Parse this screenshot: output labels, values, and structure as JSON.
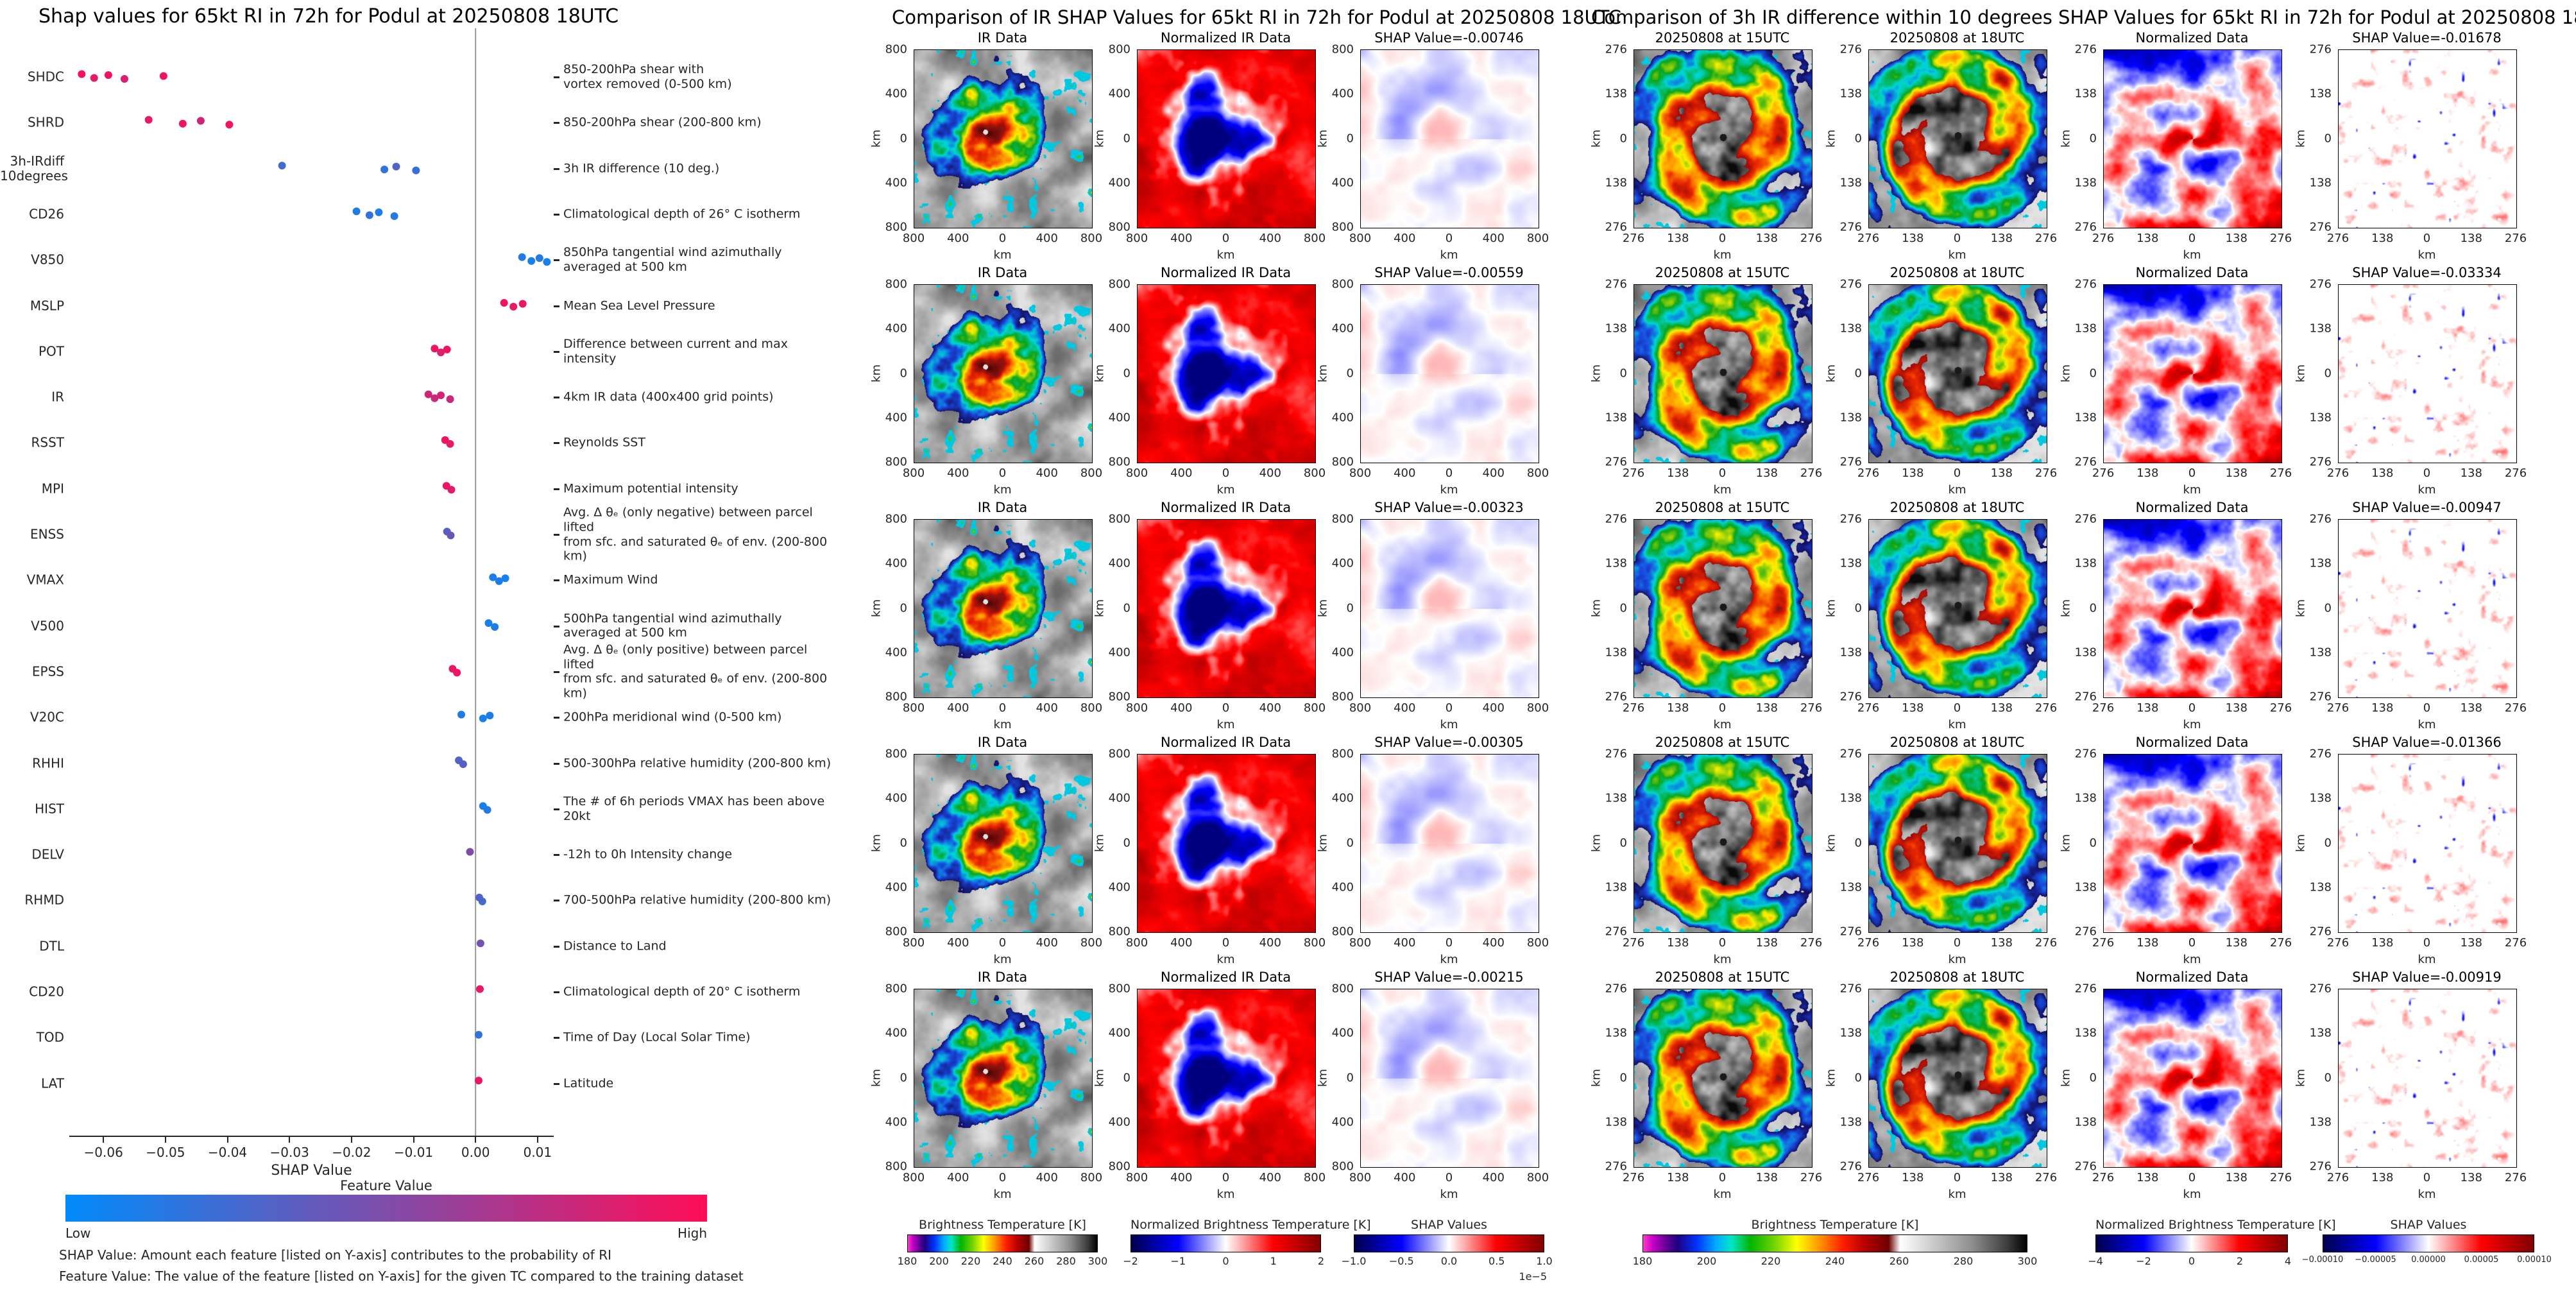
{
  "footnotes": {
    "line1": "SHAP Value: Amount each feature [listed on Y-axis] contributes to the probability of RI",
    "line2": "Feature Value: The value of the feature [listed on Y-axis] for the given TC compared to the training dataset"
  },
  "chart_data": [
    {
      "type": "scatter",
      "subtype": "shap-beeswarm",
      "title": "Shap values for 65kt RI in 72h for Podul at 20250808 18UTC",
      "xlabel": "SHAP Value",
      "xlim": [
        -0.0655,
        0.0126
      ],
      "x_ticks": [
        {
          "v": -0.06,
          "label": "−0.06"
        },
        {
          "v": -0.05,
          "label": "−0.05"
        },
        {
          "v": -0.04,
          "label": "−0.04"
        },
        {
          "v": -0.03,
          "label": "−0.03"
        },
        {
          "v": -0.02,
          "label": "−0.02"
        },
        {
          "v": -0.01,
          "label": "−0.01"
        },
        {
          "v": 0.0,
          "label": "0.00"
        },
        {
          "v": 0.01,
          "label": "0.01"
        }
      ],
      "colorbar": {
        "title": "Feature Value",
        "low": "Low",
        "high": "High"
      },
      "features": [
        {
          "name": "SHDC",
          "desc": "850-200hPa shear with\nvortex removed (0-500 km)",
          "points": [
            {
              "x": -0.0635,
              "c": 0.97
            },
            {
              "x": -0.0615,
              "c": 0.9
            },
            {
              "x": -0.0592,
              "c": 0.97
            },
            {
              "x": -0.0566,
              "c": 0.85
            },
            {
              "x": -0.0503,
              "c": 0.95
            }
          ]
        },
        {
          "name": "SHRD",
          "desc": "850-200hPa shear (200-800 km)",
          "points": [
            {
              "x": -0.0527,
              "c": 0.9
            },
            {
              "x": -0.0472,
              "c": 0.95
            },
            {
              "x": -0.0443,
              "c": 0.82
            },
            {
              "x": -0.0397,
              "c": 0.93
            }
          ]
        },
        {
          "name": "3h-IRdiff\n10degrees",
          "desc": "3h IR difference (10 deg.)",
          "points": [
            {
              "x": -0.0312,
              "c": 0.25
            },
            {
              "x": -0.0147,
              "c": 0.2
            },
            {
              "x": -0.0128,
              "c": 0.32
            },
            {
              "x": -0.0096,
              "c": 0.22
            }
          ]
        },
        {
          "name": "CD26",
          "desc": "Climatological depth of 26° C isotherm",
          "points": [
            {
              "x": -0.0192,
              "c": 0.12
            },
            {
              "x": -0.0171,
              "c": 0.2
            },
            {
              "x": -0.0156,
              "c": 0.1
            },
            {
              "x": -0.0131,
              "c": 0.15
            }
          ]
        },
        {
          "name": "V850",
          "desc": "850hPa tangential wind azimuthally\naveraged at 500 km",
          "points": [
            {
              "x": 0.0075,
              "c": 0.12
            },
            {
              "x": 0.009,
              "c": 0.08
            },
            {
              "x": 0.0103,
              "c": 0.15
            },
            {
              "x": 0.0115,
              "c": 0.1
            }
          ]
        },
        {
          "name": "MSLP",
          "desc": "Mean Sea Level Pressure",
          "points": [
            {
              "x": 0.0046,
              "c": 0.95
            },
            {
              "x": 0.0061,
              "c": 0.9
            },
            {
              "x": 0.0076,
              "c": 0.93
            }
          ]
        },
        {
          "name": "POT",
          "desc": "Difference between current and max intensity",
          "points": [
            {
              "x": -0.0066,
              "c": 0.93
            },
            {
              "x": -0.0056,
              "c": 0.88
            },
            {
              "x": -0.0046,
              "c": 0.95
            }
          ]
        },
        {
          "name": "IR",
          "desc": "4km IR data (400x400 grid points)",
          "points": [
            {
              "x": -0.0076,
              "c": 0.8
            },
            {
              "x": -0.0066,
              "c": 0.78
            },
            {
              "x": -0.0056,
              "c": 0.82
            },
            {
              "x": -0.0041,
              "c": 0.78
            }
          ]
        },
        {
          "name": "RSST",
          "desc": "Reynolds SST",
          "points": [
            {
              "x": -0.0049,
              "c": 0.95
            },
            {
              "x": -0.0041,
              "c": 0.9
            }
          ]
        },
        {
          "name": "MPI",
          "desc": "Maximum potential intensity",
          "points": [
            {
              "x": -0.0047,
              "c": 0.92
            },
            {
              "x": -0.0039,
              "c": 0.88
            }
          ]
        },
        {
          "name": "ENSS",
          "desc": "Avg. Δ θₑ (only negative) between parcel lifted\nfrom sfc. and saturated θₑ of env. (200-800 km)",
          "points": [
            {
              "x": -0.0046,
              "c": 0.35
            },
            {
              "x": -0.004,
              "c": 0.42
            }
          ]
        },
        {
          "name": "VMAX",
          "desc": "Maximum Wind",
          "points": [
            {
              "x": 0.0028,
              "c": 0.1
            },
            {
              "x": 0.0038,
              "c": 0.12
            },
            {
              "x": 0.0048,
              "c": 0.08
            }
          ]
        },
        {
          "name": "V500",
          "desc": "500hPa tangential wind azimuthally\naveraged at 500 km",
          "points": [
            {
              "x": 0.0021,
              "c": 0.1
            },
            {
              "x": 0.0031,
              "c": 0.12
            }
          ]
        },
        {
          "name": "EPSS",
          "desc": "Avg. Δ θₑ (only positive) between parcel lifted\nfrom sfc. and saturated θₑ of env. (200-800 km)",
          "points": [
            {
              "x": -0.0037,
              "c": 0.9
            },
            {
              "x": -0.003,
              "c": 0.94
            }
          ]
        },
        {
          "name": "V20C",
          "desc": "200hPa meridional wind (0-500 km)",
          "points": [
            {
              "x": -0.0023,
              "c": 0.12
            },
            {
              "x": 0.0012,
              "c": 0.08
            },
            {
              "x": 0.0023,
              "c": 0.12
            }
          ]
        },
        {
          "name": "RHHI",
          "desc": "500-300hPa relative humidity (200-800 km)",
          "points": [
            {
              "x": -0.0027,
              "c": 0.3
            },
            {
              "x": -0.002,
              "c": 0.35
            }
          ]
        },
        {
          "name": "HIST",
          "desc": "The # of 6h periods VMAX has been above 20kt",
          "points": [
            {
              "x": 0.0012,
              "c": 0.1
            },
            {
              "x": 0.0019,
              "c": 0.14
            }
          ]
        },
        {
          "name": "DELV",
          "desc": "-12h to 0h Intensity change",
          "points": [
            {
              "x": -0.0009,
              "c": 0.5
            }
          ]
        },
        {
          "name": "RHMD",
          "desc": "700-500hPa relative humidity (200-800 km)",
          "points": [
            {
              "x": 0.0006,
              "c": 0.32
            },
            {
              "x": 0.0011,
              "c": 0.28
            }
          ]
        },
        {
          "name": "DTL",
          "desc": "Distance to Land",
          "points": [
            {
              "x": 0.0008,
              "c": 0.45
            }
          ]
        },
        {
          "name": "CD20",
          "desc": "Climatological depth of 20° C isotherm",
          "points": [
            {
              "x": 0.0007,
              "c": 0.9
            }
          ]
        },
        {
          "name": "TOD",
          "desc": "Time of Day (Local Solar Time)",
          "points": [
            {
              "x": 0.0005,
              "c": 0.2
            }
          ]
        },
        {
          "name": "LAT",
          "desc": "Latitude",
          "points": [
            {
              "x": 0.0005,
              "c": 0.92
            }
          ]
        }
      ]
    },
    {
      "type": "heatmap",
      "subtype": "ir-shap-image-grid",
      "title": "Comparison of IR SHAP Values for 65kt RI in 72h for Podul at 20250808 18UTC",
      "axis_ticks": [
        "800",
        "400",
        "0",
        "400",
        "800"
      ],
      "axis_unit": "km",
      "rows": [
        {
          "titles": [
            "IR Data",
            "Normalized IR Data",
            "SHAP Value=-0.00746"
          ],
          "shap_value": -0.00746
        },
        {
          "titles": [
            "IR Data",
            "Normalized IR Data",
            "SHAP Value=-0.00559"
          ],
          "shap_value": -0.00559
        },
        {
          "titles": [
            "IR Data",
            "Normalized IR Data",
            "SHAP Value=-0.00323"
          ],
          "shap_value": -0.00323
        },
        {
          "titles": [
            "IR Data",
            "Normalized IR Data",
            "SHAP Value=-0.00305"
          ],
          "shap_value": -0.00305
        },
        {
          "titles": [
            "IR Data",
            "Normalized IR Data",
            "SHAP Value=-0.00215"
          ],
          "shap_value": -0.00215
        }
      ],
      "colorbars": [
        {
          "label": "Brightness Temperature [K]",
          "ticks": [
            "180",
            "200",
            "220",
            "240",
            "260",
            "280",
            "300"
          ],
          "cmap": "ir"
        },
        {
          "label": "Normalized Brightness Temperature [K]",
          "ticks": [
            "−2",
            "−1",
            "0",
            "1",
            "2"
          ],
          "cmap": "seismic"
        },
        {
          "label": "SHAP Values",
          "ticks": [
            "−1.0",
            "−0.5",
            "0.0",
            "0.5",
            "1.0"
          ],
          "offset": "1e−5",
          "cmap": "seismic"
        }
      ]
    },
    {
      "type": "heatmap",
      "subtype": "ir-diff-shap-image-grid",
      "title": "Comparison of 3h IR difference within 10 degrees SHAP Values for 65kt RI in 72h for Podul at 20250808 18UTC",
      "axis_ticks": [
        "276",
        "138",
        "0",
        "138",
        "276"
      ],
      "axis_unit": "km",
      "rows": [
        {
          "titles": [
            "20250808 at 15UTC",
            "20250808 at 18UTC",
            "Normalized Data",
            "SHAP Value=-0.01678"
          ],
          "shap_value": -0.01678
        },
        {
          "titles": [
            "20250808 at 15UTC",
            "20250808 at 18UTC",
            "Normalized Data",
            "SHAP Value=-0.03334"
          ],
          "shap_value": -0.03334
        },
        {
          "titles": [
            "20250808 at 15UTC",
            "20250808 at 18UTC",
            "Normalized Data",
            "SHAP Value=-0.00947"
          ],
          "shap_value": -0.00947
        },
        {
          "titles": [
            "20250808 at 15UTC",
            "20250808 at 18UTC",
            "Normalized Data",
            "SHAP Value=-0.01366"
          ],
          "shap_value": -0.01366
        },
        {
          "titles": [
            "20250808 at 15UTC",
            "20250808 at 18UTC",
            "Normalized Data",
            "SHAP Value=-0.00919"
          ],
          "shap_value": -0.00919
        }
      ],
      "colorbars": [
        {
          "label": "Brightness Temperature [K]",
          "ticks": [
            "180",
            "200",
            "220",
            "240",
            "260",
            "280",
            "300"
          ],
          "cmap": "ir"
        },
        {
          "label": "Normalized Brightness Temperature [K]",
          "ticks": [
            "−4",
            "−2",
            "0",
            "2",
            "4"
          ],
          "cmap": "seismic"
        },
        {
          "label": "SHAP Values",
          "ticks": [
            "−0.00010",
            "−0.00005",
            "0.00000",
            "0.00005",
            "0.00010"
          ],
          "cmap": "seismic"
        }
      ]
    }
  ]
}
